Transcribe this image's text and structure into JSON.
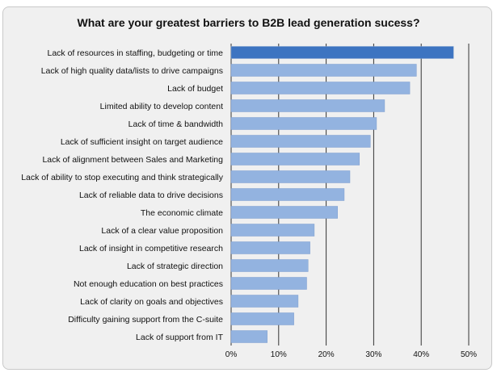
{
  "chart_data": {
    "type": "bar",
    "orientation": "horizontal",
    "title": "What are your greatest barriers to B2B lead generation sucess?",
    "xlabel": "",
    "ylabel": "",
    "xlim": [
      0,
      50
    ],
    "ticks": [
      "0%",
      "10%",
      "20%",
      "30%",
      "40%",
      "50%"
    ],
    "tick_values": [
      0,
      10,
      20,
      30,
      40,
      50
    ],
    "grid": "vertical",
    "categories": [
      "Lack of resources in staffing, budgeting or time",
      "Lack of high quality data/lists to drive campaigns",
      "Lack of budget",
      "Limited ability to develop content",
      "Lack of time & bandwidth",
      "Lack of sufficient insight on target audience",
      "Lack of alignment between Sales and Marketing",
      "Lack of ability to stop executing and think strategically",
      "Lack of reliable data to drive decisions",
      "The economic climate",
      "Lack of a clear value proposition",
      "Lack of insight in competitive research",
      "Lack of strategic direction",
      "Not enough education on best practices",
      "Lack of clarity on goals and objectives",
      "Difficulty gaining support from the C-suite",
      "Lack of support from IT"
    ],
    "values": [
      46.8,
      39.0,
      37.6,
      32.3,
      30.6,
      29.3,
      27.0,
      25.0,
      23.8,
      22.4,
      17.5,
      16.6,
      16.2,
      15.9,
      14.1,
      13.2,
      7.6
    ],
    "colors": {
      "highlight": "#3d74c1",
      "bar": "#93b3e0",
      "bar_stroke": "#7f9fcf",
      "grid": "#333333"
    }
  }
}
